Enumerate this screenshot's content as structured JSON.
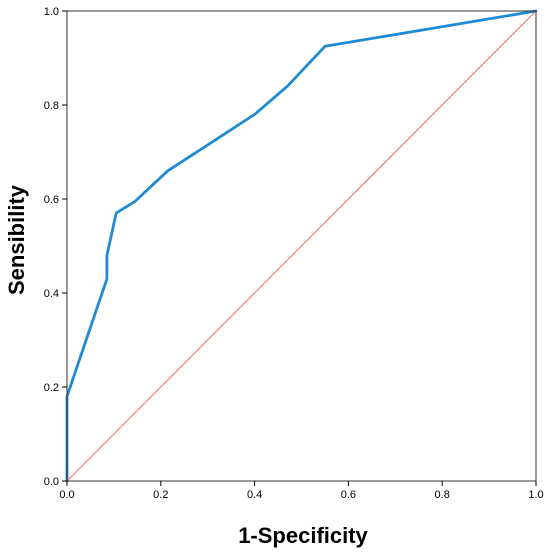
{
  "chart_data": {
    "type": "line",
    "title": "",
    "xlabel": "1-Specificity",
    "ylabel": "Sensibility",
    "xlim": [
      0.0,
      1.0
    ],
    "ylim": [
      0.0,
      1.0
    ],
    "x_ticks": [
      "0.0",
      "0.2",
      "0.4",
      "0.6",
      "0.8",
      "1.0"
    ],
    "y_ticks": [
      "0.0",
      "0.2",
      "0.4",
      "0.6",
      "0.8",
      "1.0"
    ],
    "grid": false,
    "legend": "none",
    "series": [
      {
        "color": "#1f8ad6",
        "points": [
          [
            0.0,
            0.0
          ],
          [
            0.0,
            0.18
          ],
          [
            0.085,
            0.43
          ],
          [
            0.085,
            0.48
          ],
          [
            0.105,
            0.57
          ],
          [
            0.145,
            0.595
          ],
          [
            0.215,
            0.66
          ],
          [
            0.3,
            0.715
          ],
          [
            0.4,
            0.78
          ],
          [
            0.47,
            0.84
          ],
          [
            0.55,
            0.925
          ],
          [
            1.0,
            1.0
          ]
        ]
      },
      {
        "color": "#e8766c",
        "points": [
          [
            0.0,
            0.0
          ],
          [
            1.0,
            1.0
          ]
        ]
      }
    ]
  }
}
